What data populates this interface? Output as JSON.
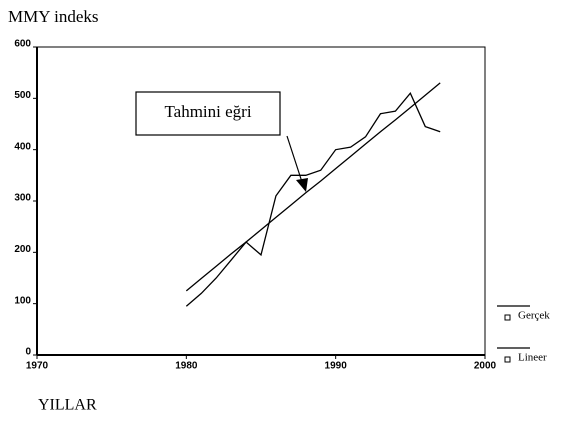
{
  "chart_data": {
    "type": "line",
    "title": "MMY indeks",
    "x_label": "YILLAR",
    "annotation": "Tahmini eğri",
    "x": [
      1980,
      1981,
      1982,
      1983,
      1984,
      1985,
      1986,
      1987,
      1988,
      1989,
      1990,
      1991,
      1992,
      1993,
      1994,
      1995,
      1996,
      1997
    ],
    "series": [
      {
        "name": "Gerçek",
        "color": "#000000",
        "values": [
          95,
          120,
          150,
          185,
          220,
          195,
          310,
          350,
          350,
          360,
          400,
          405,
          425,
          470,
          475,
          510,
          445,
          435
        ]
      },
      {
        "name": "Lineer",
        "color": "#000000",
        "values": [
          125,
          149,
          173,
          197,
          220,
          244,
          268,
          292,
          316,
          339,
          363,
          387,
          411,
          435,
          458,
          482,
          506,
          530
        ]
      }
    ],
    "xlim": [
      1970,
      2000
    ],
    "xticks": [
      1970,
      1980,
      1990,
      2000
    ],
    "ylim": [
      0,
      600
    ],
    "yticks": [
      0,
      100,
      200,
      300,
      400,
      500,
      600
    ],
    "grid": false,
    "legend": "right"
  }
}
